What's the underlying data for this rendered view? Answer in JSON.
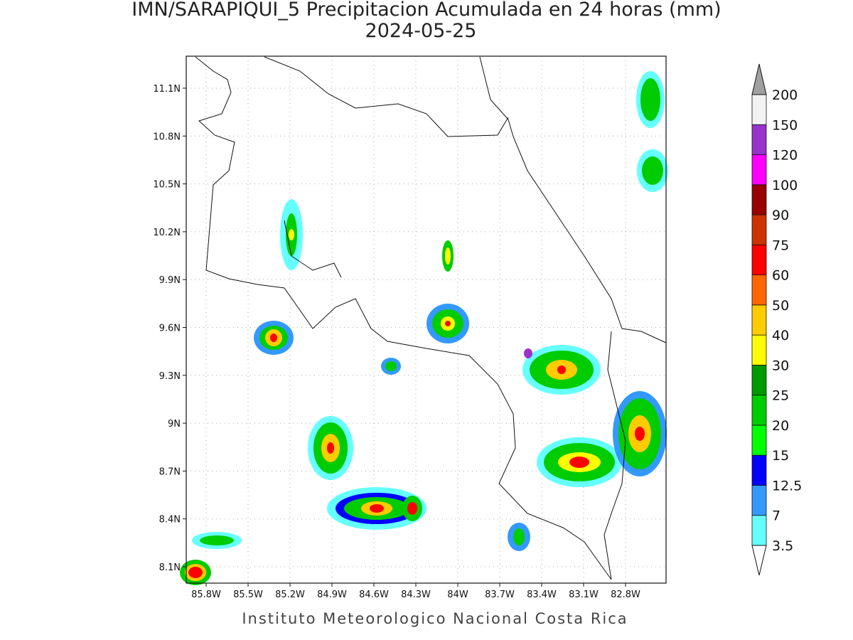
{
  "header": {
    "title": "IMN/SARAPIQUI_5 Precipitacion Acumulada en 24 horas (mm)",
    "subtitle": "2024-05-25"
  },
  "map": {
    "lon_ticks": [
      "85.8W",
      "85.5W",
      "85.2W",
      "84.9W",
      "84.6W",
      "84.3W",
      "84W",
      "83.7W",
      "83.4W",
      "83.1W",
      "82.8W"
    ],
    "lat_ticks": [
      "11.1N",
      "10.8N",
      "10.5N",
      "10.2N",
      "9.9N",
      "9.6N",
      "9.3N",
      "9N",
      "8.7N",
      "8.4N",
      "8.1N"
    ]
  },
  "colorbar": {
    "levels": [
      3.5,
      7,
      12.5,
      15,
      20,
      25,
      30,
      40,
      50,
      60,
      75,
      90,
      100,
      120,
      150,
      200
    ],
    "colors": [
      "#66ffff",
      "#3399ff",
      "#0000ff",
      "#00ff00",
      "#00cc00",
      "#009900",
      "#ffff00",
      "#ffcc00",
      "#ff6600",
      "#ff0000",
      "#cc3300",
      "#990000",
      "#ff00ff",
      "#9933cc",
      "#f2f2f2"
    ],
    "over_color": "#a0a0a0",
    "under_color": "#ffffff"
  },
  "footer": "Instituto Meteorologico Nacional Costa Rica"
}
